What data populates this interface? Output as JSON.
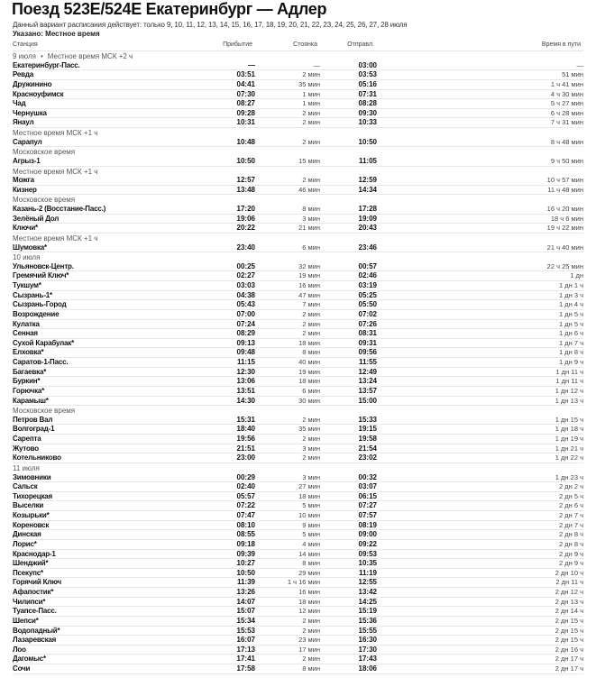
{
  "header": {
    "title": "Поезд 523Е/524Е Екатеринбург — Адлер",
    "validity": "Данный вариант расписания действует: только 9, 10, 11, 12, 13, 14, 15, 16, 17, 18, 19, 20, 21, 22, 23, 24, 25, 26, 27, 28 июля",
    "time_note": "Указано: Местное время"
  },
  "columns": {
    "station": "Станция",
    "arrival": "Прибытие",
    "stop": "Стоянка",
    "departure": "Отправл.",
    "travel": "Время в пути"
  },
  "rows": [
    {
      "date": "9 июля",
      "note": "Местное время МСК +2 ч"
    },
    {
      "station": "Екатеринбург-Пасс.",
      "arrival": "—",
      "stop": "—",
      "departure": "03:00",
      "travel": "—"
    },
    {
      "station": "Ревда",
      "arrival": "03:51",
      "stop": "2 мин",
      "departure": "03:53",
      "travel": "51 мин"
    },
    {
      "station": "Дружинино",
      "arrival": "04:41",
      "stop": "35 мин",
      "departure": "05:16",
      "travel": "1 ч 41 мин"
    },
    {
      "station": "Красноуфимск",
      "arrival": "07:30",
      "stop": "1 мин",
      "departure": "07:31",
      "travel": "4 ч 30 мин"
    },
    {
      "station": "Чад",
      "arrival": "08:27",
      "stop": "1 мин",
      "departure": "08:28",
      "travel": "5 ч 27 мин"
    },
    {
      "station": "Чернушка",
      "arrival": "09:28",
      "stop": "2 мин",
      "departure": "09:30",
      "travel": "6 ч 28 мин"
    },
    {
      "station": "Янаул",
      "arrival": "10:31",
      "stop": "2 мин",
      "departure": "10:33",
      "travel": "7 ч 31 мин"
    },
    {
      "note": "Местное время МСК +1 ч"
    },
    {
      "station": "Сарапул",
      "arrival": "10:48",
      "stop": "2 мин",
      "departure": "10:50",
      "travel": "8 ч 48 мин"
    },
    {
      "note": "Московское время"
    },
    {
      "station": "Агрыз-1",
      "arrival": "10:50",
      "stop": "15 мин",
      "departure": "11:05",
      "travel": "9 ч 50 мин"
    },
    {
      "note": "Местное время МСК +1 ч"
    },
    {
      "station": "Можга",
      "arrival": "12:57",
      "stop": "2 мин",
      "departure": "12:59",
      "travel": "10 ч 57 мин"
    },
    {
      "station": "Кизнер",
      "arrival": "13:48",
      "stop": "46 мин",
      "departure": "14:34",
      "travel": "11 ч 48 мин"
    },
    {
      "note": "Московское время"
    },
    {
      "station": "Казань-2 (Восстание-Пасс.)",
      "arrival": "17:20",
      "stop": "8 мин",
      "departure": "17:28",
      "travel": "16 ч 20 мин"
    },
    {
      "station": "Зелёный Дол",
      "arrival": "19:06",
      "stop": "3 мин",
      "departure": "19:09",
      "travel": "18 ч 6 мин"
    },
    {
      "station": "Ключи*",
      "arrival": "20:22",
      "stop": "21 мин",
      "departure": "20:43",
      "travel": "19 ч 22 мин"
    },
    {
      "note": "Местное время МСК +1 ч"
    },
    {
      "station": "Шумовка*",
      "arrival": "23:40",
      "stop": "6 мин",
      "departure": "23:46",
      "travel": "21 ч 40 мин"
    },
    {
      "date": "10 июля"
    },
    {
      "station": "Ульяновск-Центр.",
      "arrival": "00:25",
      "stop": "32 мин",
      "departure": "00:57",
      "travel": "22 ч 25 мин"
    },
    {
      "station": "Гремячий Ключ*",
      "arrival": "02:27",
      "stop": "19 мин",
      "departure": "02:46",
      "travel": "1 дн"
    },
    {
      "station": "Тукшум*",
      "arrival": "03:03",
      "stop": "16 мин",
      "departure": "03:19",
      "travel": "1 дн 1 ч"
    },
    {
      "station": "Сызрань-1*",
      "arrival": "04:38",
      "stop": "47 мин",
      "departure": "05:25",
      "travel": "1 дн 3 ч"
    },
    {
      "station": "Сызрань-Город",
      "arrival": "05:43",
      "stop": "7 мин",
      "departure": "05:50",
      "travel": "1 дн 4 ч"
    },
    {
      "station": "Возрождение",
      "arrival": "07:00",
      "stop": "2 мин",
      "departure": "07:02",
      "travel": "1 дн 5 ч"
    },
    {
      "station": "Кулатка",
      "arrival": "07:24",
      "stop": "2 мин",
      "departure": "07:26",
      "travel": "1 дн 5 ч"
    },
    {
      "station": "Сенная",
      "arrival": "08:29",
      "stop": "2 мин",
      "departure": "08:31",
      "travel": "1 дн 6 ч"
    },
    {
      "station": "Сухой Карабулак*",
      "arrival": "09:13",
      "stop": "18 мин",
      "departure": "09:31",
      "travel": "1 дн 7 ч"
    },
    {
      "station": "Елховка*",
      "arrival": "09:48",
      "stop": "8 мин",
      "departure": "09:56",
      "travel": "1 дн 8 ч"
    },
    {
      "station": "Саратов-1-Пасс.",
      "arrival": "11:15",
      "stop": "40 мин",
      "departure": "11:55",
      "travel": "1 дн 9 ч"
    },
    {
      "station": "Багаевка*",
      "arrival": "12:30",
      "stop": "19 мин",
      "departure": "12:49",
      "travel": "1 дн 11 ч"
    },
    {
      "station": "Буркин*",
      "arrival": "13:06",
      "stop": "18 мин",
      "departure": "13:24",
      "travel": "1 дн 11 ч"
    },
    {
      "station": "Горючка*",
      "arrival": "13:51",
      "stop": "6 мин",
      "departure": "13:57",
      "travel": "1 дн 12 ч"
    },
    {
      "station": "Карамыш*",
      "arrival": "14:30",
      "stop": "30 мин",
      "departure": "15:00",
      "travel": "1 дн 13 ч"
    },
    {
      "note": "Московское время"
    },
    {
      "station": "Петров Вал",
      "arrival": "15:31",
      "stop": "2 мин",
      "departure": "15:33",
      "travel": "1 дн 15 ч"
    },
    {
      "station": "Волгоград-1",
      "arrival": "18:40",
      "stop": "35 мин",
      "departure": "19:15",
      "travel": "1 дн 18 ч"
    },
    {
      "station": "Сарепта",
      "arrival": "19:56",
      "stop": "2 мин",
      "departure": "19:58",
      "travel": "1 дн 19 ч"
    },
    {
      "station": "Жутово",
      "arrival": "21:51",
      "stop": "3 мин",
      "departure": "21:54",
      "travel": "1 дн 21 ч"
    },
    {
      "station": "Котельниково",
      "arrival": "23:00",
      "stop": "2 мин",
      "departure": "23:02",
      "travel": "1 дн 22 ч"
    },
    {
      "date": "11 июля"
    },
    {
      "station": "Зимовники",
      "arrival": "00:29",
      "stop": "3 мин",
      "departure": "00:32",
      "travel": "1 дн 23 ч"
    },
    {
      "station": "Сальск",
      "arrival": "02:40",
      "stop": "27 мин",
      "departure": "03:07",
      "travel": "2 дн 2 ч"
    },
    {
      "station": "Тихорецкая",
      "arrival": "05:57",
      "stop": "18 мин",
      "departure": "06:15",
      "travel": "2 дн 5 ч"
    },
    {
      "station": "Выселки",
      "arrival": "07:22",
      "stop": "5 мин",
      "departure": "07:27",
      "travel": "2 дн 6 ч"
    },
    {
      "station": "Козырьки*",
      "arrival": "07:47",
      "stop": "10 мин",
      "departure": "07:57",
      "travel": "2 дн 7 ч"
    },
    {
      "station": "Кореновск",
      "arrival": "08:10",
      "stop": "9 мин",
      "departure": "08:19",
      "travel": "2 дн 7 ч"
    },
    {
      "station": "Динская",
      "arrival": "08:55",
      "stop": "5 мин",
      "departure": "09:00",
      "travel": "2 дн 8 ч"
    },
    {
      "station": "Лорис*",
      "arrival": "09:18",
      "stop": "4 мин",
      "departure": "09:22",
      "travel": "2 дн 8 ч"
    },
    {
      "station": "Краснодар-1",
      "arrival": "09:39",
      "stop": "14 мин",
      "departure": "09:53",
      "travel": "2 дн 9 ч"
    },
    {
      "station": "Шенджий*",
      "arrival": "10:27",
      "stop": "8 мин",
      "departure": "10:35",
      "travel": "2 дн 9 ч"
    },
    {
      "station": "Псекупс*",
      "arrival": "10:50",
      "stop": "29 мин",
      "departure": "11:19",
      "travel": "2 дн 10 ч"
    },
    {
      "station": "Горячий Ключ",
      "arrival": "11:39",
      "stop": "1 ч 16 мин",
      "departure": "12:55",
      "travel": "2 дн 11 ч"
    },
    {
      "station": "Афапостик*",
      "arrival": "13:26",
      "stop": "16 мин",
      "departure": "13:42",
      "travel": "2 дн 12 ч"
    },
    {
      "station": "Чилипси*",
      "arrival": "14:07",
      "stop": "18 мин",
      "departure": "14:25",
      "travel": "2 дн 13 ч"
    },
    {
      "station": "Туапсе-Пасс.",
      "arrival": "15:07",
      "stop": "12 мин",
      "departure": "15:19",
      "travel": "2 дн 14 ч"
    },
    {
      "station": "Шепси*",
      "arrival": "15:34",
      "stop": "2 мин",
      "departure": "15:36",
      "travel": "2 дн 15 ч"
    },
    {
      "station": "Водопадный*",
      "arrival": "15:53",
      "stop": "2 мин",
      "departure": "15:55",
      "travel": "2 дн 15 ч"
    },
    {
      "station": "Лазаревская",
      "arrival": "16:07",
      "stop": "23 мин",
      "departure": "16:30",
      "travel": "2 дн 15 ч"
    },
    {
      "station": "Лоо",
      "arrival": "17:13",
      "stop": "17 мин",
      "departure": "17:30",
      "travel": "2 дн 16 ч"
    },
    {
      "station": "Дагомыс*",
      "arrival": "17:41",
      "stop": "2 мин",
      "departure": "17:43",
      "travel": "2 дн 17 ч"
    },
    {
      "station": "Сочи",
      "arrival": "17:58",
      "stop": "8 мин",
      "departure": "18:06",
      "travel": "2 дн 17 ч"
    }
  ]
}
